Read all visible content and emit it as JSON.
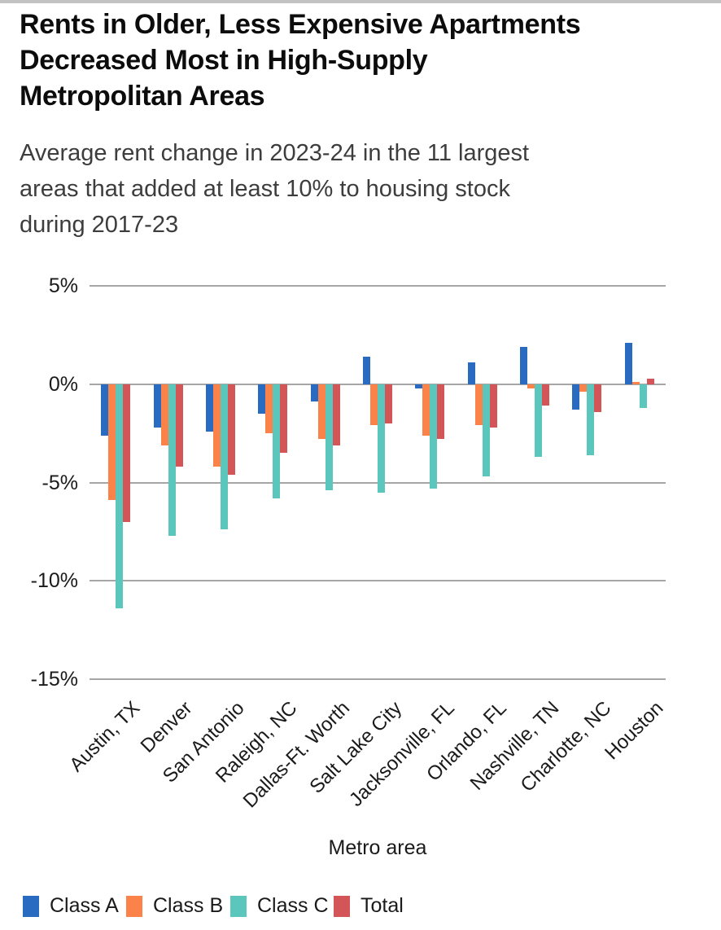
{
  "header": {
    "title": "Rents in Older, Less Expensive Apartments\nDecreased Most in High-Supply\nMetropolitan Areas",
    "subtitle": "Average rent change in 2023-24 in the 11 largest\nareas that added at least 10% to housing stock\nduring 2017-23"
  },
  "chart_data": {
    "type": "bar",
    "title": "Rents in Older, Less Expensive Apartments Decreased Most in High-Supply Metropolitan Areas",
    "subtitle": "Average rent change in 2023-24 in the 11 largest areas that added at least 10% to housing stock during 2017-23",
    "xlabel": "Metro area",
    "ylabel": "",
    "unit": "%",
    "ylim": [
      -15,
      5
    ],
    "yticks": [
      5,
      0,
      -5,
      -10,
      -15
    ],
    "ytick_labels": [
      "5%",
      "0%",
      "-5%",
      "-10%",
      "-15%"
    ],
    "grid": true,
    "legend_position": "bottom",
    "categories": [
      "Austin, TX",
      "Denver",
      "San Antonio",
      "Raleigh, NC",
      "Dallas-Ft. Worth",
      "Salt Lake City",
      "Jacksonville, FL",
      "Orlando, FL",
      "Nashville, TN",
      "Charlotte, NC",
      "Houston"
    ],
    "series": [
      {
        "name": "Class A",
        "color": "#2a6bc2",
        "values": [
          -2.6,
          -2.2,
          -2.4,
          -1.5,
          -0.9,
          1.4,
          -0.2,
          1.1,
          1.9,
          -1.3,
          2.1
        ]
      },
      {
        "name": "Class B",
        "color": "#fb8249",
        "values": [
          -5.9,
          -3.1,
          -4.2,
          -2.5,
          -2.8,
          -2.1,
          -2.6,
          -2.1,
          -0.2,
          -0.4,
          0.1
        ]
      },
      {
        "name": "Class C",
        "color": "#5bc6bc",
        "values": [
          -11.4,
          -7.7,
          -7.4,
          -5.8,
          -5.4,
          -5.5,
          -5.3,
          -4.7,
          -3.7,
          -3.6,
          -1.2
        ]
      },
      {
        "name": "Total",
        "color": "#d45558",
        "values": [
          -7.0,
          -4.2,
          -4.6,
          -3.5,
          -3.1,
          -2.0,
          -2.8,
          -2.2,
          -1.1,
          -1.4,
          0.3
        ]
      }
    ]
  },
  "colors": {
    "gridline": "#a6a6a6",
    "top_strip": "#c2c2c2",
    "title_text": "#0c0c0c",
    "subtitle_text": "#3d3d3d"
  }
}
